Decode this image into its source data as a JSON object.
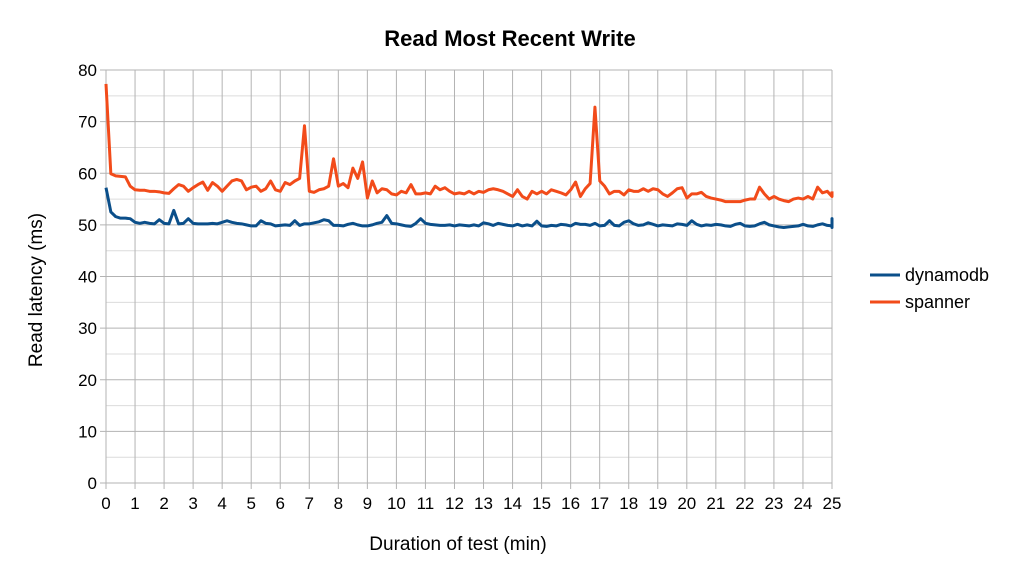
{
  "chart_data": {
    "type": "line",
    "title": "Read Most Recent Write",
    "xlabel": "Duration of test (min)",
    "ylabel": "Read latency (ms)",
    "xlim": [
      0,
      25
    ],
    "ylim": [
      0,
      80
    ],
    "x_ticks": [
      "0",
      "1",
      "2",
      "3",
      "4",
      "5",
      "6",
      "7",
      "8",
      "9",
      "10",
      "11",
      "12",
      "13",
      "14",
      "15",
      "16",
      "17",
      "18",
      "19",
      "20",
      "21",
      "22",
      "23",
      "24",
      "25"
    ],
    "y_ticks": [
      "0",
      "10",
      "20",
      "30",
      "40",
      "50",
      "60",
      "70",
      "80"
    ],
    "grid": true,
    "legend_position": "right",
    "x_step": 0.1667,
    "series": [
      {
        "name": "dynamodb",
        "color": "#0b4f8a",
        "values": [
          57.2,
          52.5,
          51.6,
          51.3,
          51.3,
          51.2,
          50.5,
          50.3,
          50.5,
          50.3,
          50.2,
          51.0,
          50.3,
          50.2,
          52.8,
          50.2,
          50.3,
          51.2,
          50.3,
          50.2,
          50.2,
          50.2,
          50.3,
          50.2,
          50.5,
          50.8,
          50.5,
          50.3,
          50.2,
          50.0,
          49.8,
          49.8,
          50.8,
          50.3,
          50.2,
          49.8,
          49.9,
          50.0,
          49.9,
          50.8,
          49.9,
          50.2,
          50.2,
          50.4,
          50.6,
          51.0,
          50.8,
          49.9,
          49.9,
          49.8,
          50.1,
          50.3,
          50.0,
          49.8,
          49.8,
          50.0,
          50.3,
          50.5,
          51.8,
          50.3,
          50.2,
          50.0,
          49.8,
          49.7,
          50.3,
          51.2,
          50.3,
          50.1,
          50.0,
          49.9,
          49.9,
          50.0,
          49.8,
          50.0,
          49.9,
          49.8,
          50.0,
          49.8,
          50.4,
          50.2,
          49.9,
          50.3,
          50.1,
          49.9,
          49.8,
          50.1,
          49.8,
          50.0,
          49.8,
          50.7,
          49.8,
          49.7,
          49.9,
          49.8,
          50.1,
          50.0,
          49.8,
          50.3,
          50.1,
          50.1,
          49.9,
          50.3,
          49.8,
          49.9,
          50.8,
          49.9,
          49.8,
          50.5,
          50.8,
          50.2,
          49.9,
          50.0,
          50.4,
          50.1,
          49.8,
          50.0,
          49.9,
          49.8,
          50.2,
          50.1,
          49.9,
          50.8,
          50.1,
          49.8,
          50.0,
          49.9,
          50.1,
          50.0,
          49.8,
          49.7,
          50.1,
          50.3,
          49.8,
          49.7,
          49.8,
          50.2,
          50.5,
          50.0,
          49.8,
          49.6,
          49.5,
          49.6,
          49.7,
          49.8,
          50.1,
          49.8,
          49.7,
          50.0,
          50.2,
          49.9,
          49.8,
          49.9,
          50.1,
          49.7,
          49.8,
          49.9,
          50.0,
          51.2,
          49.8,
          50.0,
          50.1,
          49.9,
          50.0,
          50.2,
          49.5,
          49.8,
          50.5,
          50.0,
          50.2,
          49.9,
          49.8,
          49.9,
          49.7,
          49.6
        ]
      },
      {
        "name": "spanner",
        "color": "#f24b1a",
        "values": [
          77.3,
          59.9,
          59.5,
          59.4,
          59.3,
          57.5,
          56.8,
          56.7,
          56.7,
          56.5,
          56.5,
          56.4,
          56.2,
          56.1,
          57.0,
          57.8,
          57.5,
          56.5,
          57.2,
          57.8,
          58.3,
          56.7,
          58.2,
          57.5,
          56.5,
          57.5,
          58.5,
          58.8,
          58.5,
          56.8,
          57.3,
          57.5,
          56.5,
          57.0,
          58.5,
          56.8,
          56.5,
          58.2,
          57.8,
          58.5,
          59.0,
          69.2,
          56.5,
          56.3,
          56.8,
          57.0,
          57.5,
          62.8,
          57.5,
          58.0,
          57.2,
          61.0,
          59.0,
          62.2,
          55.2,
          58.5,
          56.2,
          57.0,
          56.8,
          56.0,
          55.8,
          56.5,
          56.2,
          57.8,
          56.0,
          56.0,
          56.2,
          56.0,
          57.5,
          56.8,
          57.2,
          56.5,
          56.0,
          56.2,
          56.0,
          56.5,
          56.0,
          56.5,
          56.3,
          56.8,
          57.0,
          56.8,
          56.5,
          56.0,
          55.5,
          56.8,
          55.5,
          55.0,
          56.5,
          56.0,
          56.5,
          56.0,
          56.8,
          56.5,
          56.2,
          55.8,
          56.8,
          58.3,
          55.5,
          57.0,
          58.0,
          72.8,
          58.5,
          57.5,
          56.0,
          56.5,
          56.5,
          55.8,
          56.8,
          56.5,
          56.5,
          57.0,
          56.5,
          57.0,
          56.8,
          56.0,
          55.5,
          56.2,
          57.0,
          57.2,
          55.2,
          56.0,
          56.0,
          56.3,
          55.5,
          55.2,
          55.0,
          54.8,
          54.5,
          54.5,
          54.5,
          54.5,
          54.8,
          55.0,
          55.0,
          57.3,
          56.0,
          55.0,
          55.5,
          55.0,
          54.7,
          54.5,
          55.0,
          55.2,
          55.0,
          55.5,
          55.0,
          57.3,
          56.2,
          56.5,
          55.5,
          56.5
        ]
      }
    ]
  }
}
